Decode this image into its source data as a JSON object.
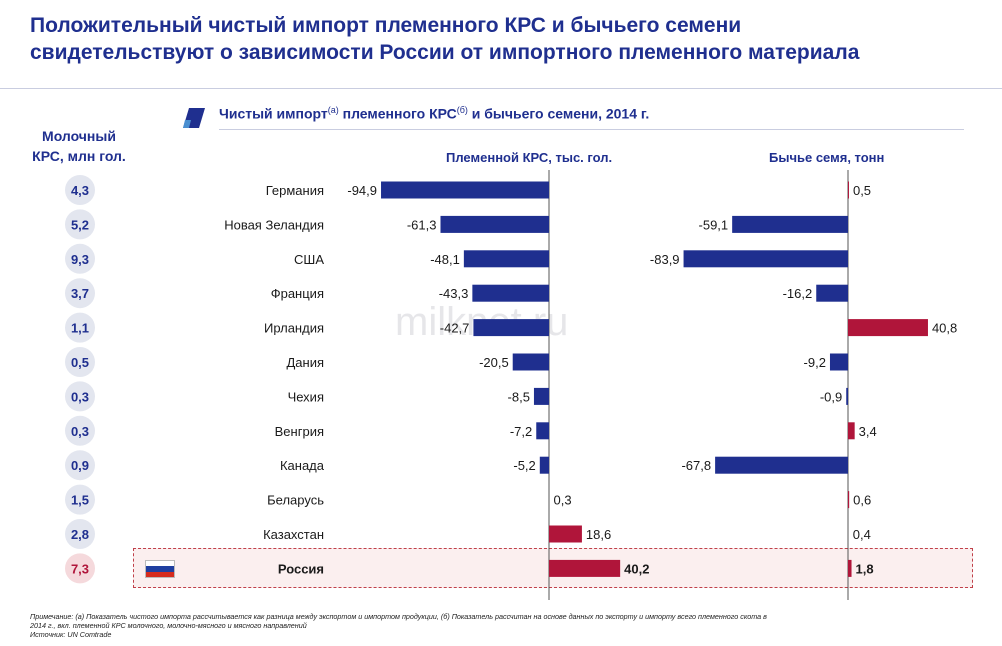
{
  "title_line1": "Положительный чистый импорт племенного КРС и бычьего семени",
  "title_line2": "свидетельствуют о зависимости России от импортного племенного материала",
  "left_header_line1": "Молочный",
  "left_header_line2": "КРС, млн гол.",
  "subtitle_a": "Чистый импорт",
  "subtitle_sup_a": "(a)",
  "subtitle_b": " племенного КРС",
  "subtitle_sup_b": "(б)",
  "subtitle_c": " и бычьего семени, 2014 г.",
  "col_header_1": "Племенной КРС, тыс. гол.",
  "col_header_2": "Бычье семя, тонн",
  "watermark": "milknet.ru",
  "footnote_1": "Примечание: (а) Показатель чистого импорта рассчитывается как разница между экспортом и импортом продукции, (б) Показатель рассчитан на основе данных по экспорту и импорту всего племенного скота в",
  "footnote_2": "2014 г., вкл. племенной КРС молочного, молочно-мясного и мясного направлений",
  "footnote_3": "Источник: UN Comtrade",
  "colors": {
    "negative": "#1f2f8f",
    "positive": "#b0153a",
    "circle": "#e3e6ef",
    "russia_circle": "#f5d9dc"
  },
  "flag_colors": [
    "#ffffff",
    "#1f3fa0",
    "#d52b1e"
  ],
  "chart_data": {
    "type": "bar",
    "categories": [
      "Германия",
      "Новая Зеландия",
      "США",
      "Франция",
      "Ирландия",
      "Дания",
      "Чехия",
      "Венгрия",
      "Канада",
      "Беларусь",
      "Казахстан",
      "Россия"
    ],
    "dairy_cattle_mln": [
      "4,3",
      "5,2",
      "9,3",
      "3,7",
      "1,1",
      "0,5",
      "0,3",
      "0,3",
      "0,9",
      "1,5",
      "2,8",
      "7,3"
    ],
    "series": [
      {
        "name": "Племенной КРС, тыс. гол.",
        "values": [
          -94.9,
          -61.3,
          -48.1,
          -43.3,
          -42.7,
          -20.5,
          -8.5,
          -7.2,
          -5.2,
          0.3,
          18.6,
          40.2
        ],
        "labels": [
          "-94,9",
          "-61,3",
          "-48,1",
          "-43,3",
          "-42,7",
          "-20,5",
          "-8,5",
          "-7,2",
          "-5,2",
          "0,3",
          "18,6",
          "40,2"
        ]
      },
      {
        "name": "Бычье семя, тонн",
        "values": [
          0.5,
          -59.1,
          -83.9,
          -16.2,
          40.8,
          -9.2,
          -0.9,
          3.4,
          -67.8,
          0.6,
          0.4,
          1.8
        ],
        "labels": [
          "0,5",
          "-59,1",
          "-83,9",
          "-16,2",
          "40,8",
          "-9,2",
          "-0,9",
          "3,4",
          "-67,8",
          "0,6",
          "0,4",
          "1,8"
        ]
      }
    ],
    "highlight": "Россия"
  }
}
